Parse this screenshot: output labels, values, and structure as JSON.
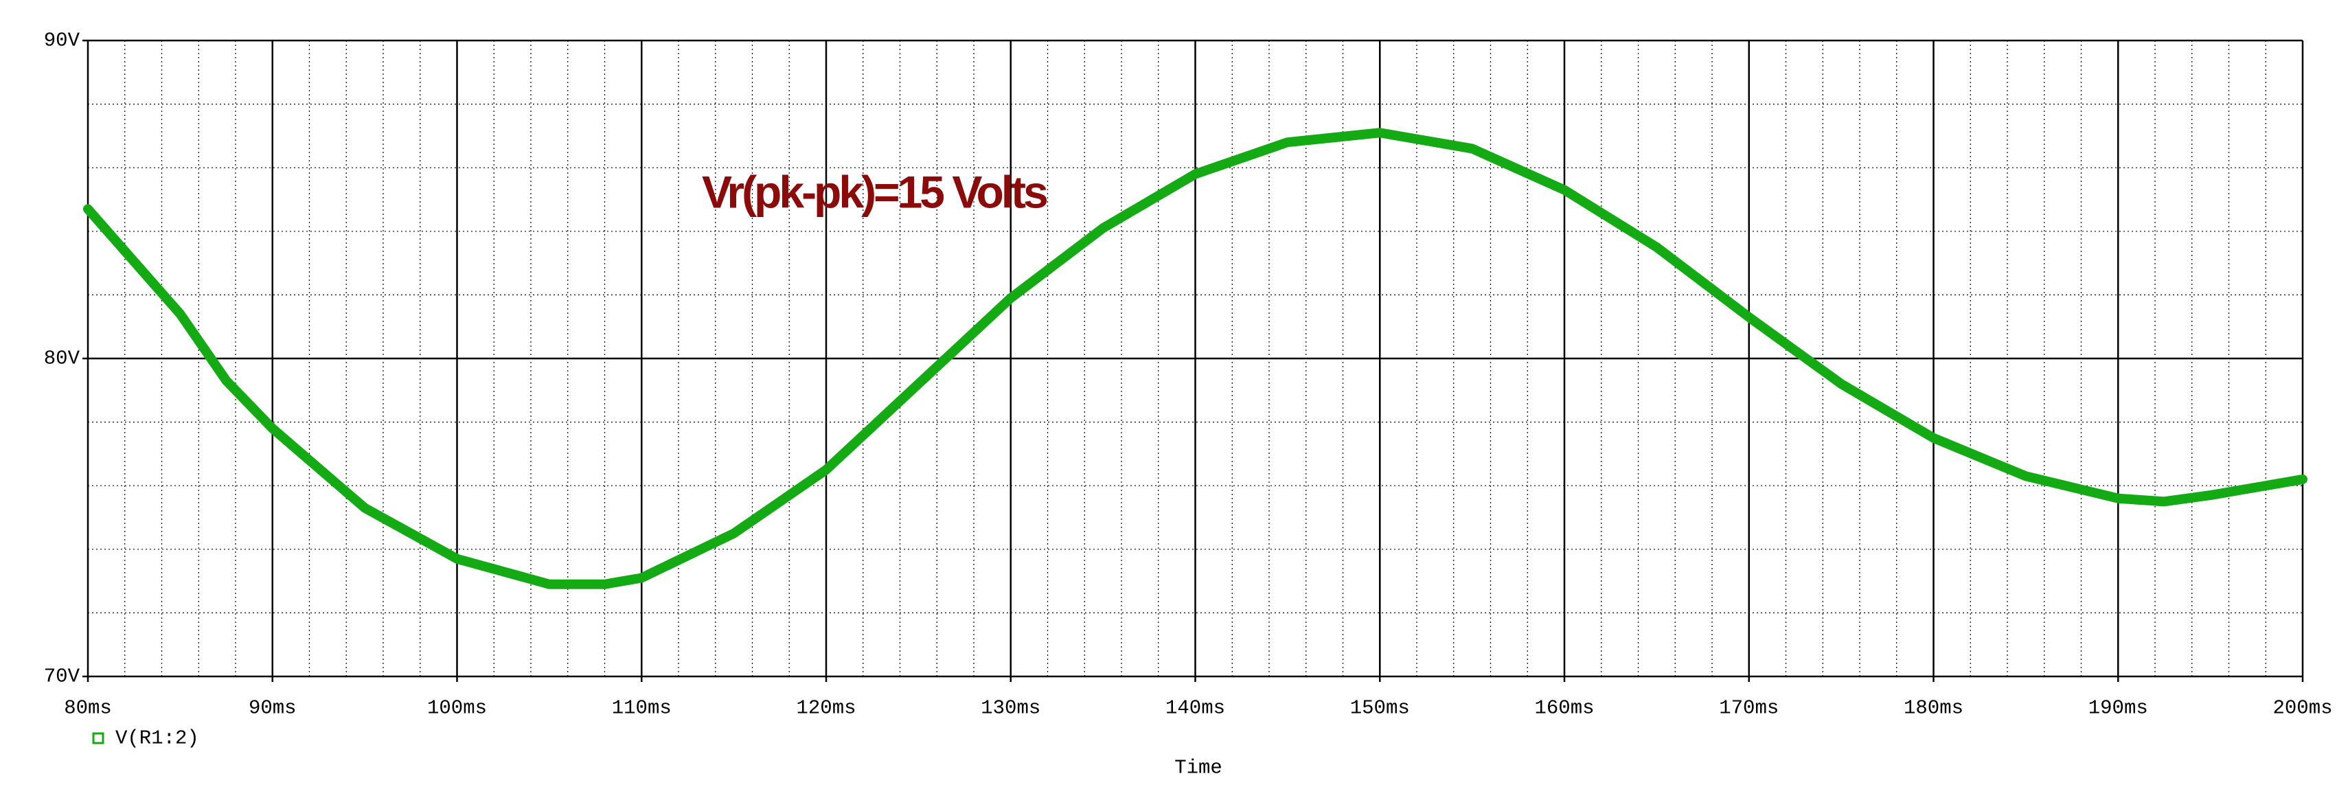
{
  "chart_data": {
    "type": "line",
    "annotation": "Vr(pk-pk)=15 Volts",
    "x_label": "Time",
    "x": [
      80,
      85,
      87.5,
      90,
      95,
      100,
      105,
      108,
      110,
      115,
      120,
      125,
      130,
      135,
      140,
      145,
      150,
      155,
      160,
      165,
      170,
      175,
      180,
      185,
      190,
      192.5,
      195,
      200
    ],
    "series": [
      {
        "name": "V(R1:2)",
        "color": "#14aa14",
        "values": [
          84.7,
          81.4,
          79.3,
          77.8,
          75.3,
          73.7,
          72.9,
          72.9,
          73.1,
          74.5,
          76.5,
          79.2,
          81.9,
          84.1,
          85.8,
          86.8,
          87.1,
          86.6,
          85.3,
          83.5,
          81.3,
          79.2,
          77.5,
          76.3,
          75.6,
          75.5,
          75.7,
          76.2
        ]
      }
    ],
    "xlim": [
      80,
      200
    ],
    "xticks": [
      {
        "value": 80,
        "label": "80ms"
      },
      {
        "value": 90,
        "label": "90ms"
      },
      {
        "value": 100,
        "label": "100ms"
      },
      {
        "value": 110,
        "label": "110ms"
      },
      {
        "value": 120,
        "label": "120ms"
      },
      {
        "value": 130,
        "label": "130ms"
      },
      {
        "value": 140,
        "label": "140ms"
      },
      {
        "value": 150,
        "label": "150ms"
      },
      {
        "value": 160,
        "label": "160ms"
      },
      {
        "value": 170,
        "label": "170ms"
      },
      {
        "value": 180,
        "label": "180ms"
      },
      {
        "value": 190,
        "label": "190ms"
      },
      {
        "value": 200,
        "label": "200ms"
      }
    ],
    "ylim": [
      70,
      90
    ],
    "yticks": [
      {
        "value": 70,
        "label": "70V"
      },
      {
        "value": 80,
        "label": "80V"
      },
      {
        "value": 90,
        "label": "90V"
      }
    ],
    "grid": true
  }
}
